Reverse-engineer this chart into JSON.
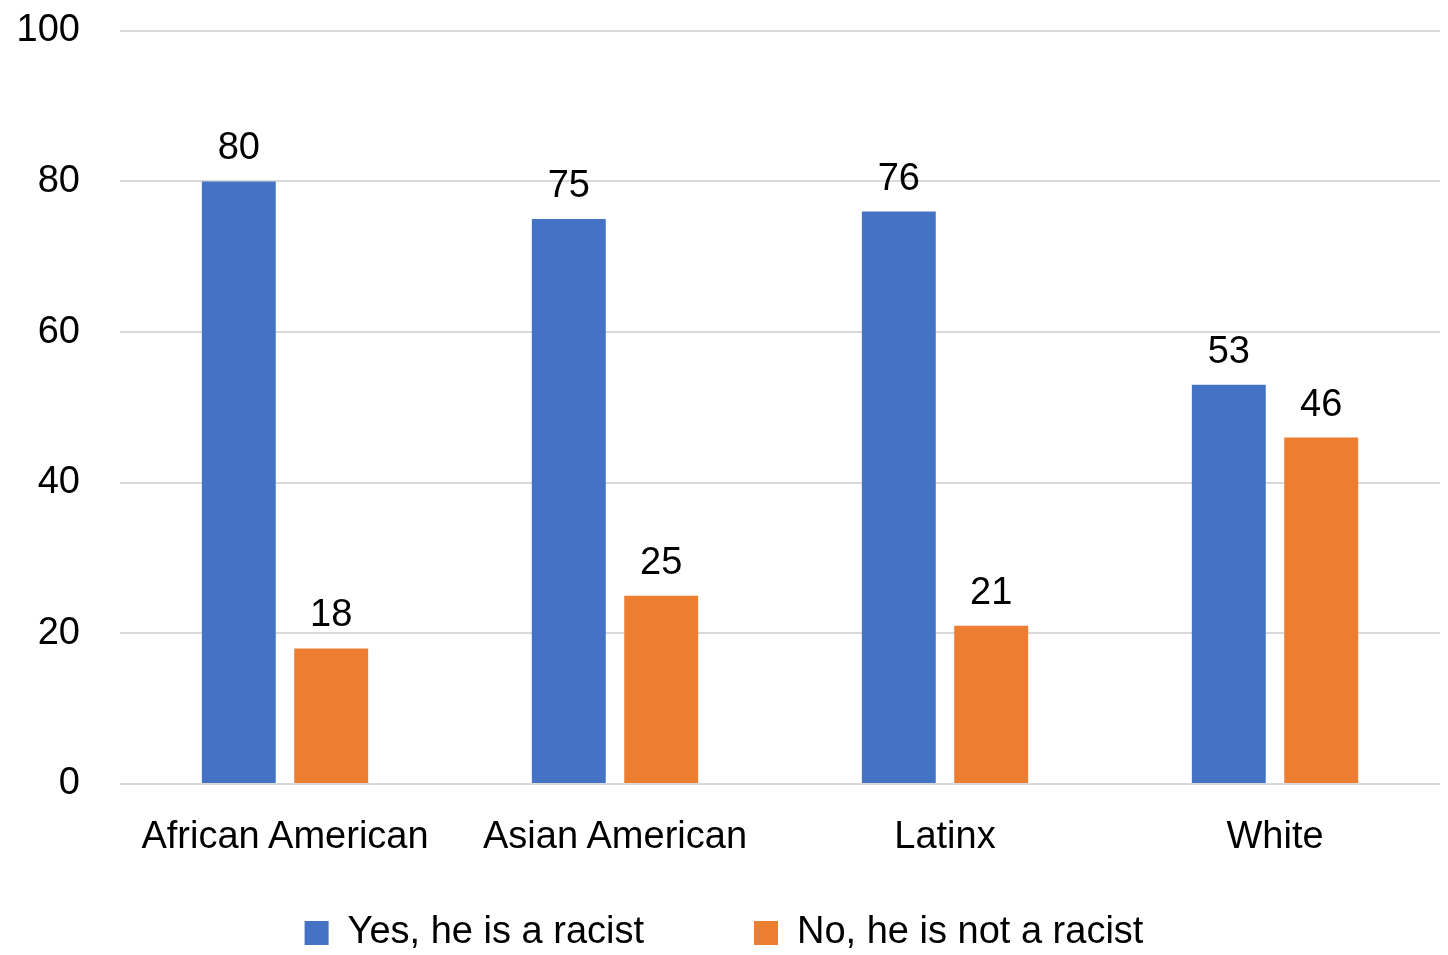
{
  "chart_data": {
    "type": "bar",
    "categories": [
      "African American",
      "Asian American",
      "Latinx",
      "White"
    ],
    "series": [
      {
        "name": "Yes, he is a racist",
        "color": "#4472c4",
        "values": [
          80,
          75,
          76,
          53
        ]
      },
      {
        "name": "No, he is not a racist",
        "color": "#ed7d31",
        "values": [
          18,
          25,
          21,
          46
        ]
      }
    ],
    "ylim": [
      0,
      100
    ],
    "yticks": [
      0,
      20,
      40,
      60,
      80,
      100
    ],
    "grid": "y",
    "legend": "bottom",
    "data_labels": true
  }
}
